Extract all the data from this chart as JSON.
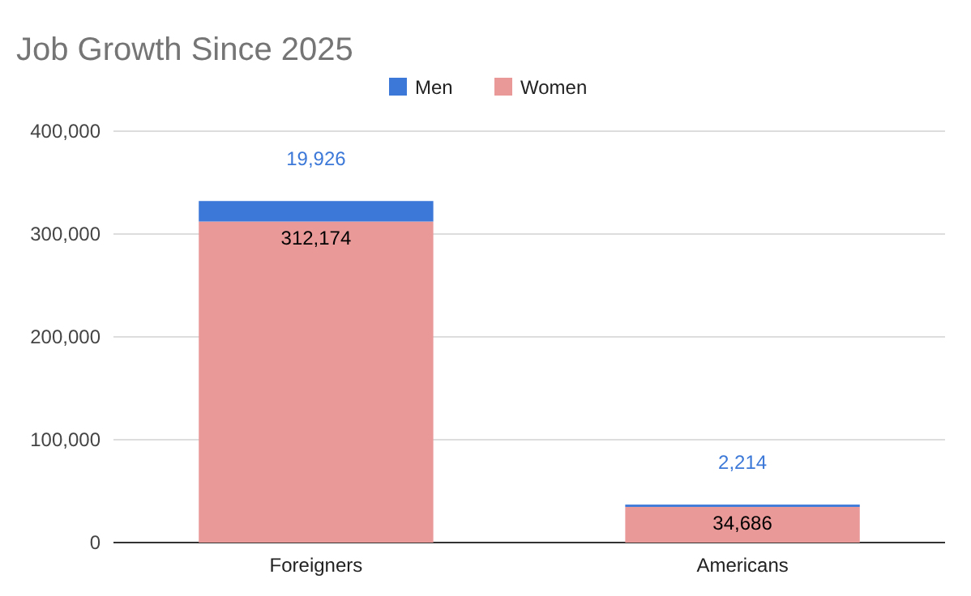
{
  "chart_data": {
    "type": "bar",
    "title": "Job Growth Since 2025",
    "categories": [
      "Foreigners",
      "Americans"
    ],
    "stacked": true,
    "series": [
      {
        "name": "Women",
        "color": "#ea9999",
        "values": [
          312174,
          34686
        ],
        "value_labels": [
          "312,174",
          "34,686"
        ]
      },
      {
        "name": "Men",
        "color": "#3c78d8",
        "values": [
          19926,
          2214
        ],
        "value_labels": [
          "19,926",
          "2,214"
        ]
      }
    ],
    "ylim": [
      0,
      400000
    ],
    "yticks": [
      {
        "value": 0,
        "label": "0"
      },
      {
        "value": 100000,
        "label": "100,000"
      },
      {
        "value": 200000,
        "label": "200,000"
      },
      {
        "value": 300000,
        "label": "300,000"
      },
      {
        "value": 400000,
        "label": "400,000"
      }
    ],
    "grid": "y",
    "legend": "top"
  }
}
